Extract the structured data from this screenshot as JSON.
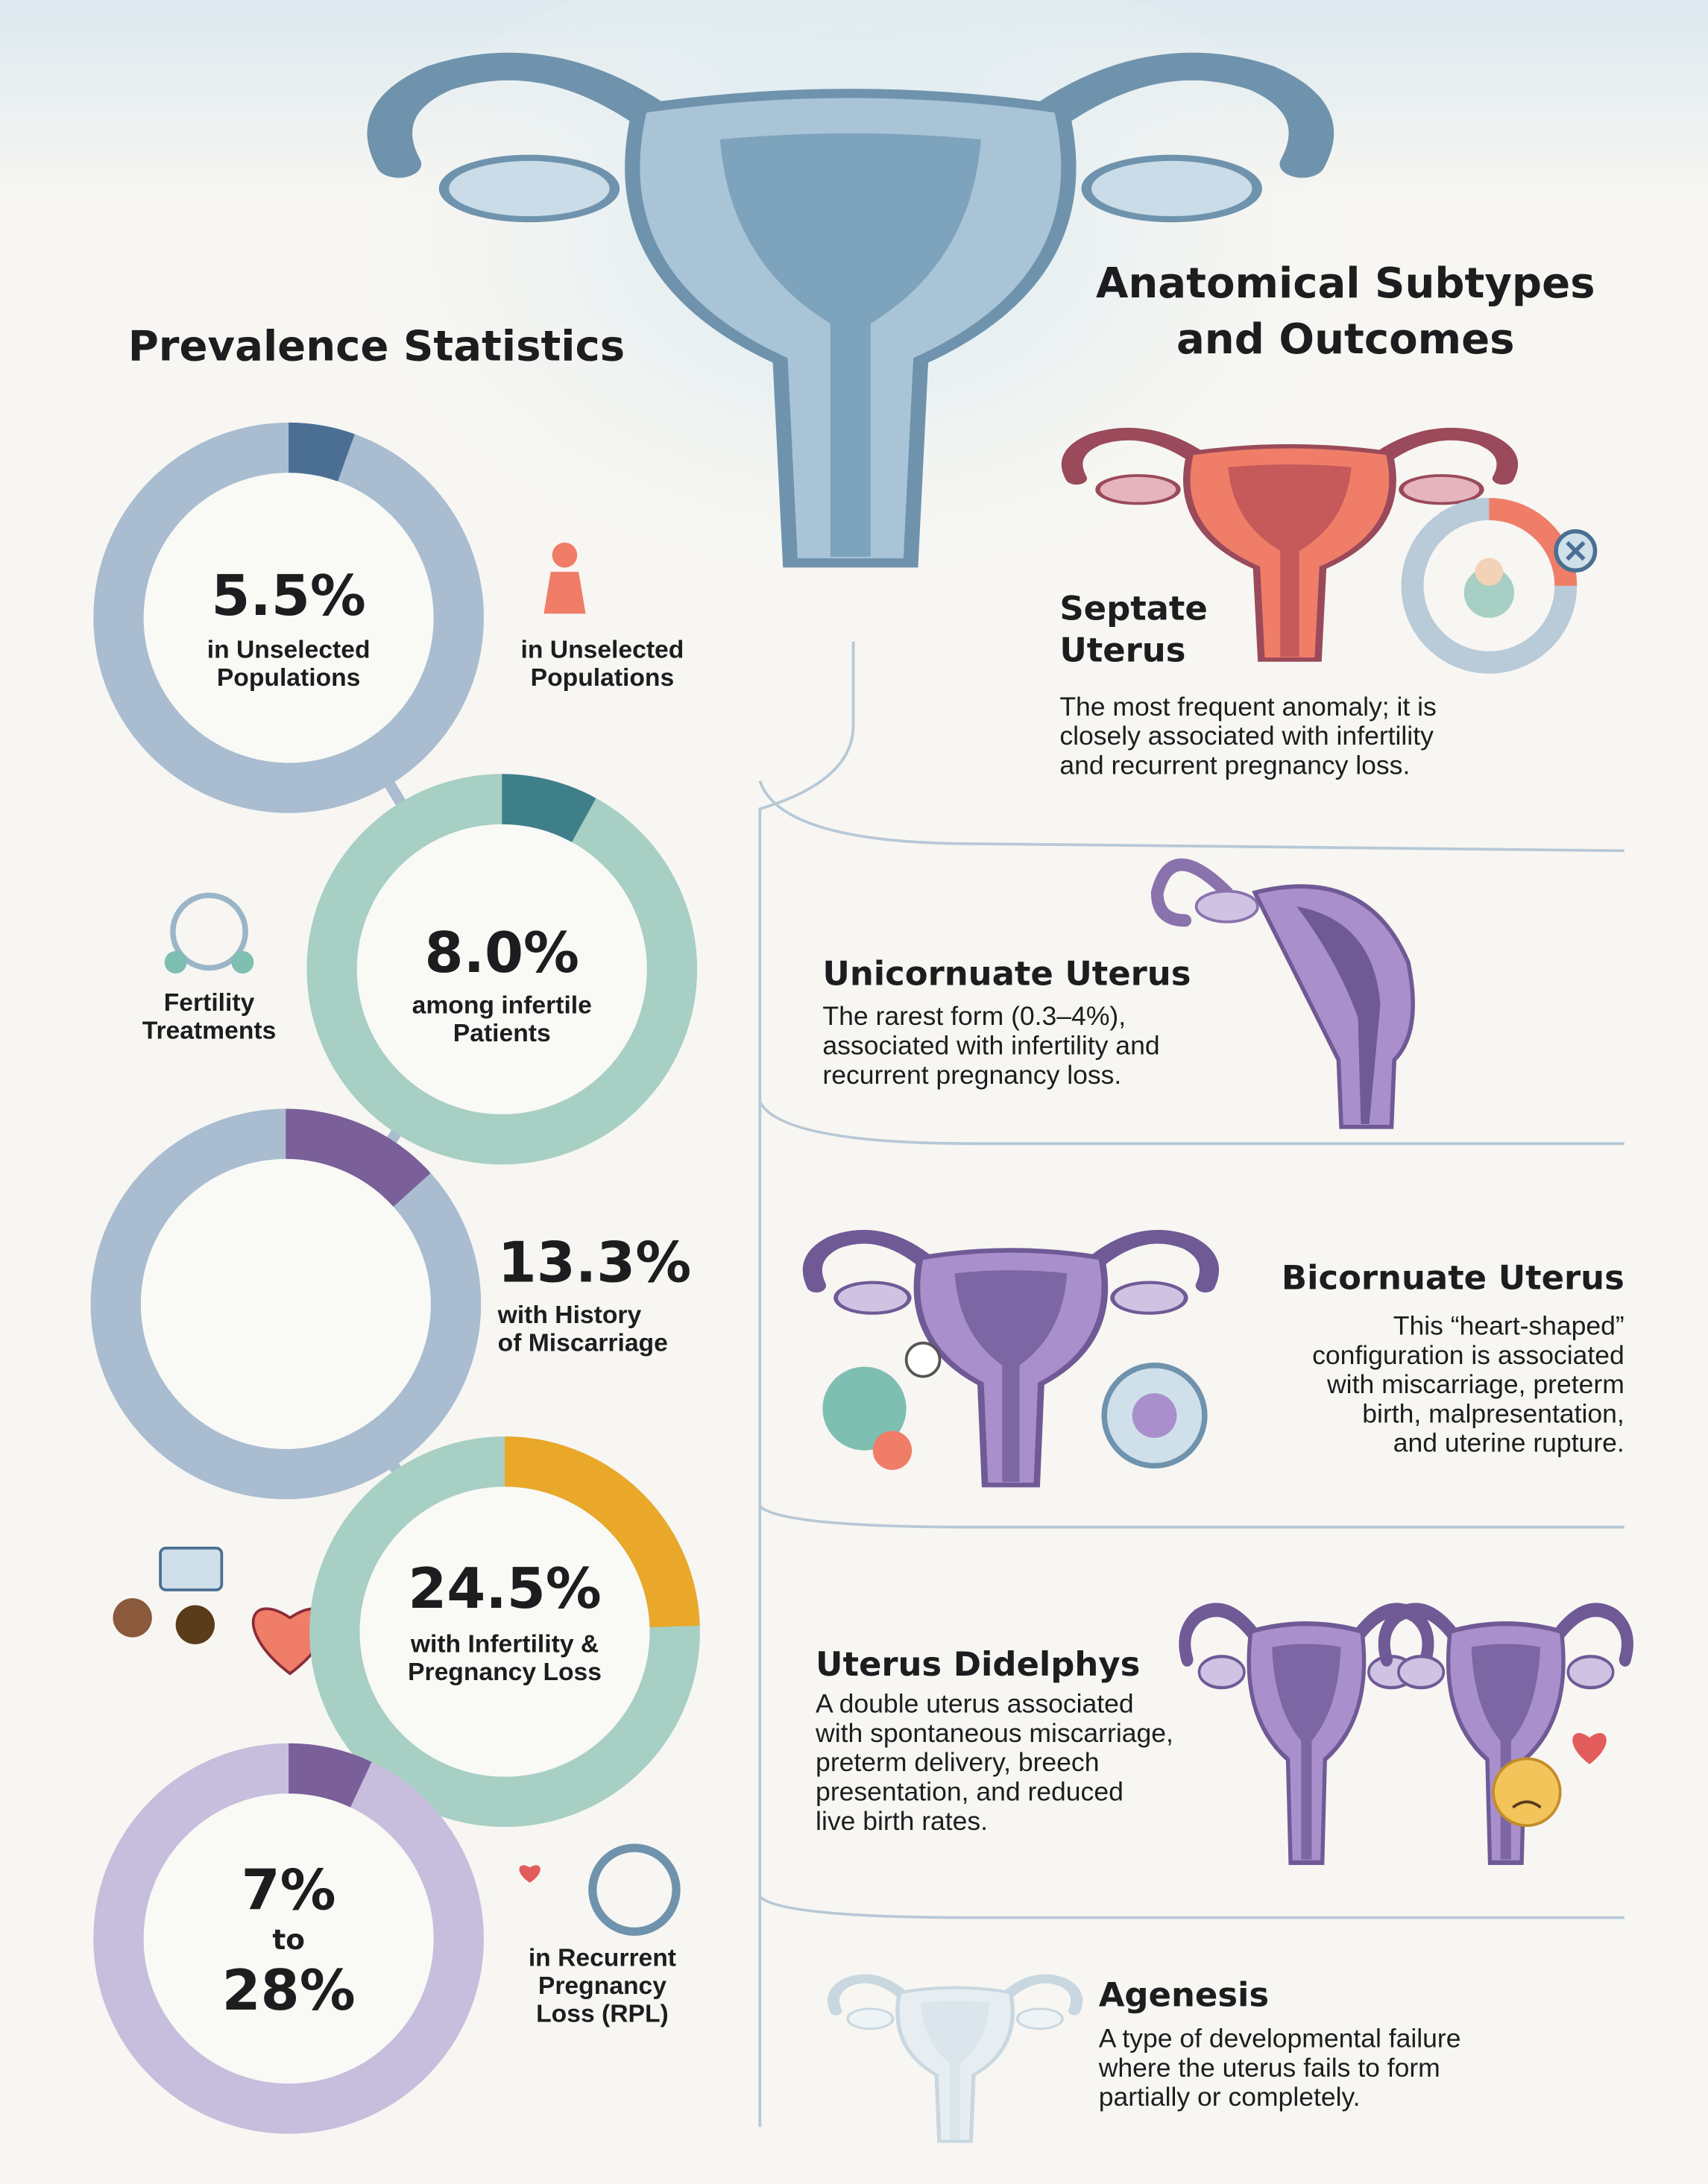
{
  "left": {
    "title": "Prevalence Statistics",
    "stats": [
      {
        "value": 5.5,
        "label": "5.5%",
        "caption": [
          "in Unselected",
          "Populations"
        ],
        "side_caption": [
          "in Unselected",
          "Populations"
        ]
      },
      {
        "value": 8.0,
        "label": "8.0%",
        "caption": [
          "among infertile",
          "Patients"
        ],
        "side_caption": [
          "Fertility",
          "Treatments"
        ]
      },
      {
        "value": 13.3,
        "label": "13.3%",
        "caption": [
          "with History",
          "of Miscarriage"
        ]
      },
      {
        "value": 24.5,
        "label": "24.5%",
        "caption": [
          "with Infertility &",
          "Pregnancy Loss"
        ]
      },
      {
        "value": 7,
        "label": "7%",
        "connector": "to",
        "label_high": "28%",
        "side_caption": [
          "in Recurrent",
          "Pregnancy",
          "Loss (RPL)"
        ]
      }
    ]
  },
  "right": {
    "title": [
      "Anatomical Subtypes",
      "and Outcomes"
    ],
    "subtypes": [
      {
        "name": [
          "Septate",
          "Uterus"
        ],
        "description": [
          "The most frequent anomaly; it is",
          "closely associated with infertility",
          "and recurrent pregnancy loss."
        ]
      },
      {
        "name": [
          "Unicornuate Uterus"
        ],
        "description": [
          "The rarest form (0.3–4%),",
          "associated with infertility and",
          "recurrent pregnancy loss."
        ]
      },
      {
        "name": [
          "Bicornuate Uterus"
        ],
        "description": [
          "This “heart-shaped”",
          "configuration is associated",
          "with miscarriage, preterm",
          "birth, malpresentation,",
          "and uterine rupture."
        ]
      },
      {
        "name": [
          "Uterus Didelphys"
        ],
        "description": [
          "A double uterus associated",
          "with spontaneous miscarriage,",
          "preterm delivery, breech",
          "presentation, and reduced",
          "live birth rates."
        ]
      },
      {
        "name": [
          "Agenesis"
        ],
        "description": [
          "A type of developmental failure",
          "where the uterus fails to form",
          "partially or completely."
        ]
      }
    ]
  }
}
